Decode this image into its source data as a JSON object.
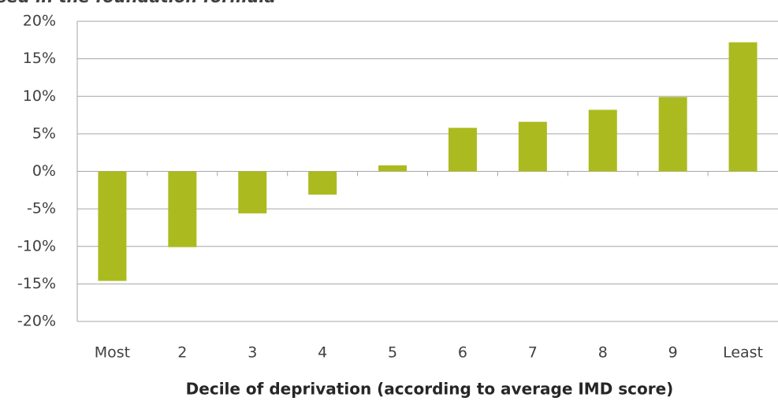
{
  "chart_data": {
    "type": "bar",
    "title": "sed in the foundation formula",
    "x_label": "Decile of deprivation (according to average IMD score)",
    "categories": [
      "Most",
      "2",
      "3",
      "4",
      "5",
      "6",
      "7",
      "8",
      "9",
      "Least"
    ],
    "values": [
      -14.6,
      -10.1,
      -5.6,
      -3.1,
      0.8,
      5.8,
      6.6,
      8.2,
      9.9,
      17.2
    ],
    "color": "#abbb1f",
    "ylim": [
      -20,
      20
    ],
    "yticks": [
      {
        "value": -20,
        "label": "-20%"
      },
      {
        "value": -15,
        "label": "-15%"
      },
      {
        "value": -10,
        "label": "-10%"
      },
      {
        "value": -5,
        "label": "-5%"
      },
      {
        "value": 0,
        "label": "0%"
      },
      {
        "value": 5,
        "label": "5%"
      },
      {
        "value": 10,
        "label": "10%"
      },
      {
        "value": 15,
        "label": "15%"
      },
      {
        "value": 20,
        "label": "20%"
      }
    ],
    "grid": true
  }
}
